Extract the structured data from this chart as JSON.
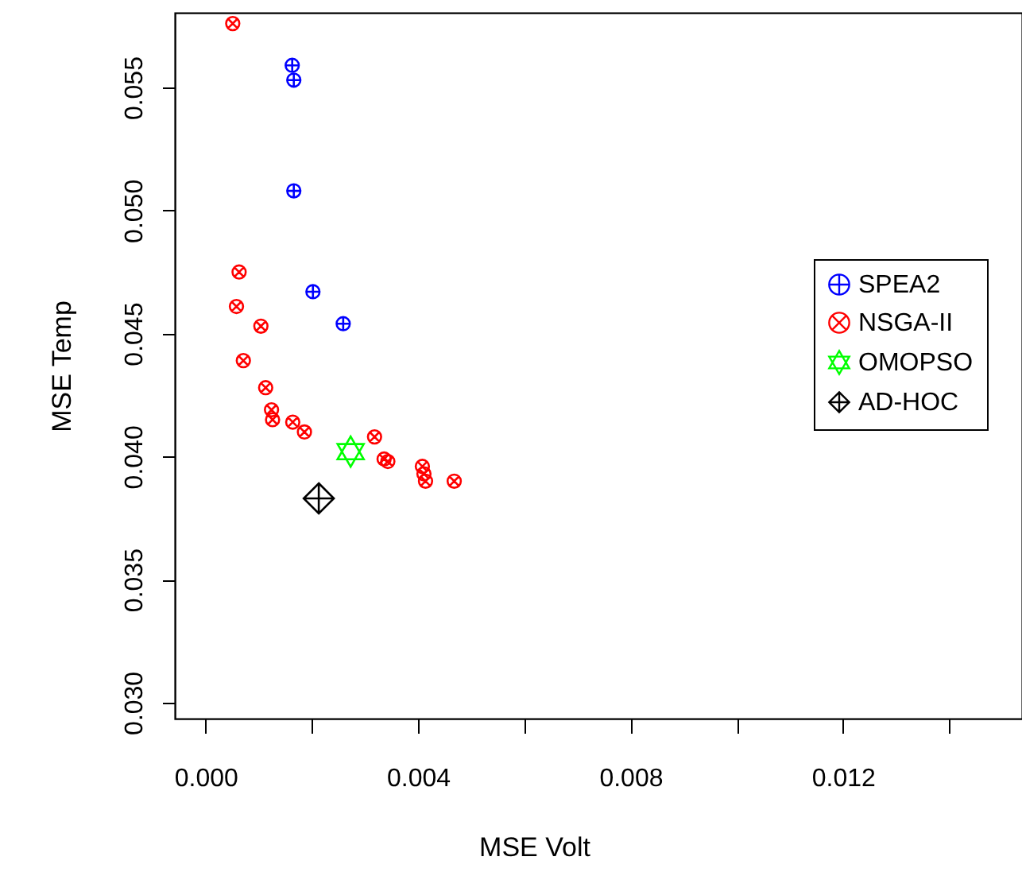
{
  "chart_data": {
    "type": "scatter",
    "xlabel": "MSE Volt",
    "ylabel": "MSE Temp",
    "xlim": [
      -0.00058,
      0.01537
    ],
    "ylim": [
      0.02935,
      0.05804
    ],
    "xticks": [
      {
        "value": 0,
        "label": "0.000"
      },
      {
        "value": 0.002,
        "label": null
      },
      {
        "value": 0.004,
        "label": "0.004"
      },
      {
        "value": 0.006,
        "label": null
      },
      {
        "value": 0.008,
        "label": "0.008"
      },
      {
        "value": 0.01,
        "label": null
      },
      {
        "value": 0.012,
        "label": "0.012"
      },
      {
        "value": 0.014,
        "label": null
      }
    ],
    "yticks": [
      {
        "value": 0.03,
        "label": "0.030"
      },
      {
        "value": 0.035,
        "label": "0.035"
      },
      {
        "value": 0.04,
        "label": "0.040"
      },
      {
        "value": 0.045,
        "label": "0.045"
      },
      {
        "value": 0.05,
        "label": "0.050"
      },
      {
        "value": 0.055,
        "label": "0.055"
      }
    ],
    "grid": false,
    "legend": "right",
    "series": [
      {
        "name": "SPEA2",
        "color": "#0000ff",
        "marker": "cross",
        "x": [
          0.00163,
          0.00166,
          0.00166,
          0.00202,
          0.00259
        ],
        "values": [
          0.0559,
          0.0553,
          0.0508,
          0.0467,
          0.0454
        ]
      },
      {
        "name": "NSGA-II",
        "color": "#ff0000",
        "marker": "cross",
        "x": [
          0.00051,
          0.00063,
          0.00058,
          0.00104,
          0.00071,
          0.00113,
          0.00124,
          0.00126,
          0.00164,
          0.00186,
          0.00318,
          0.00336,
          0.00343,
          0.00408,
          0.00411,
          0.00414,
          0.00468
        ],
        "values": [
          0.0576,
          0.0475,
          0.0461,
          0.0453,
          0.0439,
          0.0428,
          0.0419,
          0.0415,
          0.0414,
          0.041,
          0.0408,
          0.0399,
          0.0398,
          0.0396,
          0.0393,
          0.039,
          0.039
        ]
      },
      {
        "name": "OMOPSO",
        "color": "#00ff00",
        "marker": "star",
        "x": [
          0.00273
        ],
        "values": [
          0.0402
        ]
      },
      {
        "name": "AD-HOC",
        "color": "#000000",
        "marker": "cross",
        "x": [
          0.00213
        ],
        "values": [
          0.0383
        ]
      }
    ]
  }
}
